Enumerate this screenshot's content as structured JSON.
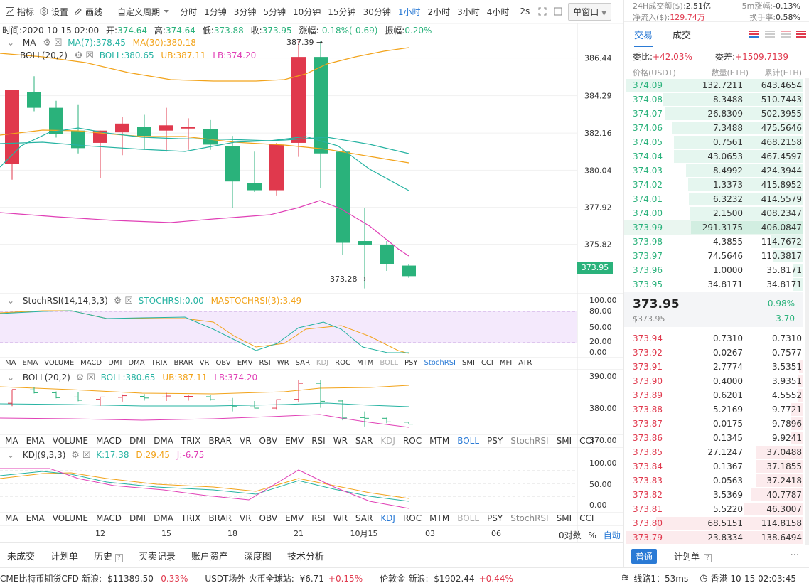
{
  "toolbar": {
    "indicators_label": "指标",
    "settings_label": "设置",
    "draw_label": "画线",
    "custom_period_label": "自定义周期",
    "intervals": [
      "分时",
      "1分钟",
      "3分钟",
      "5分钟",
      "10分钟",
      "15分钟",
      "30分钟",
      "1小时",
      "2小时",
      "3小时",
      "4小时"
    ],
    "active_interval": "1小时",
    "refresh": "2s",
    "window_mode": "单窗口"
  },
  "info": {
    "time_label": "时间:",
    "time": "2020-10-15 02:00",
    "open_label": "开:",
    "open": "374.64",
    "high_label": "高:",
    "high": "374.64",
    "low_label": "低:",
    "low": "373.88",
    "close_label": "收:",
    "close": "373.95",
    "change_label": "涨幅:",
    "change": "-0.18%(-0.69)",
    "amp_label": "振幅:",
    "amp": "0.20%"
  },
  "main": {
    "ma_label": "MA",
    "ma7": "MA(7):378.45",
    "ma30": "MA(30):380.18",
    "boll_label": "BOLL(20,2)",
    "boll": "BOLL:380.65",
    "ub": "UB:387.11",
    "lb": "LB:374.20",
    "high_mark": "387.39",
    "low_mark": "373.28",
    "price_axis": [
      "386.44",
      "384.29",
      "382.16",
      "380.04",
      "377.92",
      "375.82"
    ],
    "current_price": "373.95"
  },
  "stochrsi": {
    "label": "StochRSI(14,14,3,3)",
    "value": "STOCHRSI:0.00",
    "ma": "MASTOCHRSI(3):3.49",
    "axis": [
      "100.00",
      "80.00",
      "50.00",
      "20.00",
      "0.00"
    ]
  },
  "boll_pane": {
    "label": "BOLL(20,2)",
    "boll": "BOLL:380.65",
    "ub": "UB:387.11",
    "lb": "LB:374.20",
    "axis": [
      "390.00",
      "380.00",
      "370.00"
    ]
  },
  "kdj": {
    "label": "KDJ(9,3,3)",
    "k": "K:17.38",
    "d": "D:29.45",
    "j": "J:-6.75",
    "axis": [
      "100.00",
      "50.00",
      "0.00"
    ]
  },
  "indicator_tabs_small": [
    "MA",
    "EMA",
    "VOLUME",
    "MACD",
    "DMI",
    "DMA",
    "TRIX",
    "BRAR",
    "VR",
    "OBV",
    "EMV",
    "RSI",
    "WR",
    "SAR",
    "KDJ",
    "ROC",
    "MTM",
    "BOLL",
    "PSY",
    "StochRSI",
    "SMI",
    "CCI",
    "MFI",
    "ATR"
  ],
  "indicator_tabs_large": [
    "MA",
    "EMA",
    "VOLUME",
    "MACD",
    "DMI",
    "DMA",
    "TRIX",
    "BRAR",
    "VR",
    "OBV",
    "EMV",
    "RSI",
    "WR",
    "SAR",
    "KDJ",
    "ROC",
    "MTM",
    "BOLL",
    "PSY",
    "StochRSI",
    "SMI",
    "CCI"
  ],
  "x_axis": [
    "12",
    "15",
    "18",
    "21",
    "10月15",
    "03",
    "06"
  ],
  "scale_controls": {
    "pct": "0对数",
    "pct_sign": "%",
    "auto": "自动"
  },
  "bottom_tabs": [
    "未成交",
    "计划单",
    "历史",
    "买卖记录",
    "账户资产",
    "深度图",
    "技术分析"
  ],
  "ticker": [
    {
      "name": "CME比特币期货CFD-新浪:",
      "price": "$11389.50",
      "chg": "-0.33%"
    },
    {
      "name": "USDT场外-火币全球站:",
      "price": "¥6.71",
      "chg": "+0.15%"
    },
    {
      "name": "伦敦金-新浪:",
      "price": "$1902.44",
      "chg": "+0.44%"
    }
  ],
  "status": {
    "line": "线路1：53ms",
    "clock": "香港 10-15 02:03:45"
  },
  "right": {
    "vol24_label": "24H成交额($):",
    "vol24": "2.51亿",
    "m5_label": "5m涨幅:",
    "m5": "-0.13%",
    "inflow_label": "净流入($):",
    "inflow": "129.74万",
    "turnover_label": "换手率:",
    "turnover": "0.58%",
    "tab_trade": "交易",
    "tab_deal": "成交",
    "weibi_label": "委比:",
    "weibi": "+42.03%",
    "weicha_label": "委差:",
    "weicha": "+1509.7139",
    "col_price": "价格(USDT)",
    "col_qty": "数量(ETH)",
    "col_total": "累计(ETH)",
    "bids": [
      [
        "374.09",
        "132.7211",
        "643.4654"
      ],
      [
        "374.08",
        "8.3488",
        "510.7443"
      ],
      [
        "374.07",
        "26.8309",
        "502.3955"
      ],
      [
        "374.06",
        "7.3488",
        "475.5646"
      ],
      [
        "374.05",
        "0.7561",
        "468.2158"
      ],
      [
        "374.04",
        "43.0653",
        "467.4597"
      ],
      [
        "374.03",
        "8.4992",
        "424.3944"
      ],
      [
        "374.02",
        "1.3373",
        "415.8952"
      ],
      [
        "374.01",
        "6.3232",
        "414.5579"
      ],
      [
        "374.00",
        "2.1500",
        "408.2347"
      ],
      [
        "373.99",
        "291.3175",
        "406.0847"
      ],
      [
        "373.98",
        "4.3855",
        "114.7672"
      ],
      [
        "373.97",
        "74.5646",
        "110.3817"
      ],
      [
        "373.96",
        "1.0000",
        "35.8171"
      ],
      [
        "373.95",
        "34.8171",
        "34.8171"
      ]
    ],
    "last_price": "373.95",
    "last_pct": "-0.98%",
    "last_usd": "$373.95",
    "last_chg": "-3.70",
    "asks": [
      [
        "373.94",
        "0.7310",
        "0.7310"
      ],
      [
        "373.92",
        "0.0267",
        "0.7577"
      ],
      [
        "373.91",
        "2.7774",
        "3.5351"
      ],
      [
        "373.90",
        "0.4000",
        "3.9351"
      ],
      [
        "373.89",
        "0.6201",
        "4.5552"
      ],
      [
        "373.88",
        "5.2169",
        "9.7721"
      ],
      [
        "373.87",
        "0.0175",
        "9.7896"
      ],
      [
        "373.86",
        "0.1345",
        "9.9241"
      ],
      [
        "373.85",
        "27.1247",
        "37.0488"
      ],
      [
        "373.84",
        "0.1367",
        "37.1855"
      ],
      [
        "373.83",
        "0.0563",
        "37.2418"
      ],
      [
        "373.82",
        "3.5369",
        "40.7787"
      ],
      [
        "373.81",
        "5.5220",
        "46.3007"
      ],
      [
        "373.80",
        "68.5151",
        "114.8158"
      ],
      [
        "373.79",
        "23.8334",
        "138.6494"
      ]
    ],
    "btn_normal": "普通",
    "btn_plan": "计划单",
    "more": "···"
  },
  "colors": {
    "up": "#e0394d",
    "down": "#2ab27b",
    "accent": "#2a7ad5"
  }
}
